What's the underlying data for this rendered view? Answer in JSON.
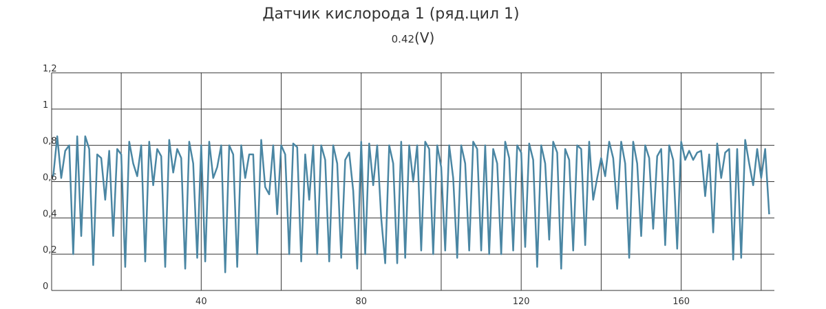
{
  "chart_data": {
    "type": "line",
    "title": "Датчик кислорода 1 (ряд.цил 1)",
    "current_value": "0.42",
    "unit": "(V)",
    "x": [
      3,
      4,
      5,
      6,
      7,
      8,
      9,
      10,
      11,
      12,
      13,
      14,
      15,
      16,
      17,
      18,
      19,
      20,
      21,
      22,
      23,
      24,
      25,
      26,
      27,
      28,
      29,
      30,
      31,
      32,
      33,
      34,
      35,
      36,
      37,
      38,
      39,
      40,
      41,
      42,
      43,
      44,
      45,
      46,
      47,
      48,
      49,
      50,
      51,
      52,
      53,
      54,
      55,
      56,
      57,
      58,
      59,
      60,
      61,
      62,
      63,
      64,
      65,
      66,
      67,
      68,
      69,
      70,
      71,
      72,
      73,
      74,
      75,
      76,
      77,
      78,
      79,
      80,
      81,
      82,
      83,
      84,
      85,
      86,
      87,
      88,
      89,
      90,
      91,
      92,
      93,
      94,
      95,
      96,
      97,
      98,
      99,
      100,
      101,
      102,
      103,
      104,
      105,
      106,
      107,
      108,
      109,
      110,
      111,
      112,
      113,
      114,
      115,
      116,
      117,
      118,
      119,
      120,
      121,
      122,
      123,
      124,
      125,
      126,
      127,
      128,
      129,
      130,
      131,
      132,
      133,
      134,
      135,
      136,
      137,
      138,
      139,
      140,
      141,
      142,
      143,
      144,
      145,
      146,
      147,
      148,
      149,
      150,
      151,
      152,
      153,
      154,
      155,
      156,
      157,
      158,
      159,
      160,
      161,
      162,
      163,
      164,
      165,
      166,
      167,
      168,
      169,
      170,
      171,
      172,
      173,
      174,
      175,
      176,
      177,
      178,
      179,
      180,
      181,
      182
    ],
    "values": [
      0.63,
      0.85,
      0.62,
      0.77,
      0.8,
      0.2,
      0.85,
      0.3,
      0.85,
      0.78,
      0.14,
      0.75,
      0.73,
      0.5,
      0.77,
      0.3,
      0.78,
      0.75,
      0.13,
      0.82,
      0.7,
      0.63,
      0.8,
      0.16,
      0.82,
      0.58,
      0.78,
      0.74,
      0.13,
      0.83,
      0.65,
      0.78,
      0.73,
      0.12,
      0.82,
      0.7,
      0.18,
      0.8,
      0.16,
      0.82,
      0.62,
      0.68,
      0.8,
      0.1,
      0.8,
      0.75,
      0.13,
      0.8,
      0.62,
      0.75,
      0.75,
      0.2,
      0.83,
      0.57,
      0.53,
      0.8,
      0.42,
      0.8,
      0.75,
      0.2,
      0.81,
      0.79,
      0.16,
      0.75,
      0.5,
      0.8,
      0.2,
      0.8,
      0.72,
      0.16,
      0.8,
      0.7,
      0.18,
      0.72,
      0.76,
      0.55,
      0.12,
      0.82,
      0.2,
      0.81,
      0.58,
      0.8,
      0.4,
      0.15,
      0.8,
      0.7,
      0.15,
      0.82,
      0.18,
      0.8,
      0.6,
      0.8,
      0.22,
      0.82,
      0.78,
      0.2,
      0.8,
      0.68,
      0.22,
      0.8,
      0.62,
      0.18,
      0.8,
      0.7,
      0.22,
      0.82,
      0.78,
      0.22,
      0.8,
      0.2,
      0.78,
      0.7,
      0.2,
      0.82,
      0.73,
      0.22,
      0.8,
      0.76,
      0.24,
      0.81,
      0.72,
      0.13,
      0.8,
      0.7,
      0.28,
      0.82,
      0.76,
      0.12,
      0.78,
      0.72,
      0.22,
      0.8,
      0.78,
      0.25,
      0.82,
      0.5,
      0.62,
      0.73,
      0.63,
      0.82,
      0.73,
      0.45,
      0.82,
      0.7,
      0.18,
      0.82,
      0.7,
      0.3,
      0.8,
      0.73,
      0.34,
      0.74,
      0.78,
      0.25,
      0.8,
      0.72,
      0.23,
      0.82,
      0.72,
      0.77,
      0.72,
      0.76,
      0.77,
      0.52,
      0.75,
      0.32,
      0.81,
      0.62,
      0.76,
      0.78,
      0.17,
      0.78,
      0.18,
      0.83,
      0.7,
      0.58,
      0.78,
      0.62,
      0.78,
      0.42
    ],
    "color": "#4a86a3",
    "xlim": [
      2.6,
      183.3
    ],
    "xticks": [
      {
        "value": 20,
        "label": null
      },
      40,
      {
        "value": 60,
        "label": null
      },
      80,
      {
        "value": 100,
        "label": null
      },
      120,
      {
        "value": 140,
        "label": null
      },
      160,
      {
        "value": 180,
        "label": null
      }
    ],
    "ylim": [
      0,
      1.2
    ],
    "yticks": [
      0,
      {
        "value": 0.2,
        "label": "0,2"
      },
      {
        "value": 0.4,
        "label": "0,4"
      },
      {
        "value": 0.6,
        "label": "0,6"
      },
      {
        "value": 0.8,
        "label": "0,8"
      },
      1,
      {
        "value": 1.2,
        "label": "1,2"
      }
    ],
    "grid": true
  }
}
